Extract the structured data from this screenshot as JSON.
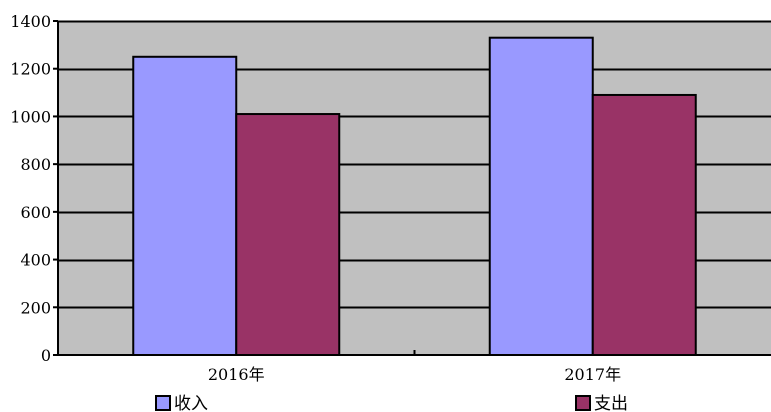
{
  "chart_data": {
    "type": "bar",
    "categories": [
      "2016年",
      "2017年"
    ],
    "series": [
      {
        "name": "收入",
        "values": [
          1250,
          1330
        ],
        "color": "#9999ff"
      },
      {
        "name": "支出",
        "values": [
          1010,
          1090
        ],
        "color": "#993366"
      }
    ],
    "ylim": [
      0,
      1400
    ],
    "yticks": [
      0,
      200,
      400,
      600,
      800,
      1000,
      1200,
      1400
    ],
    "plot_background": "#c0c0c0",
    "grid": true,
    "legend_position": "bottom"
  }
}
